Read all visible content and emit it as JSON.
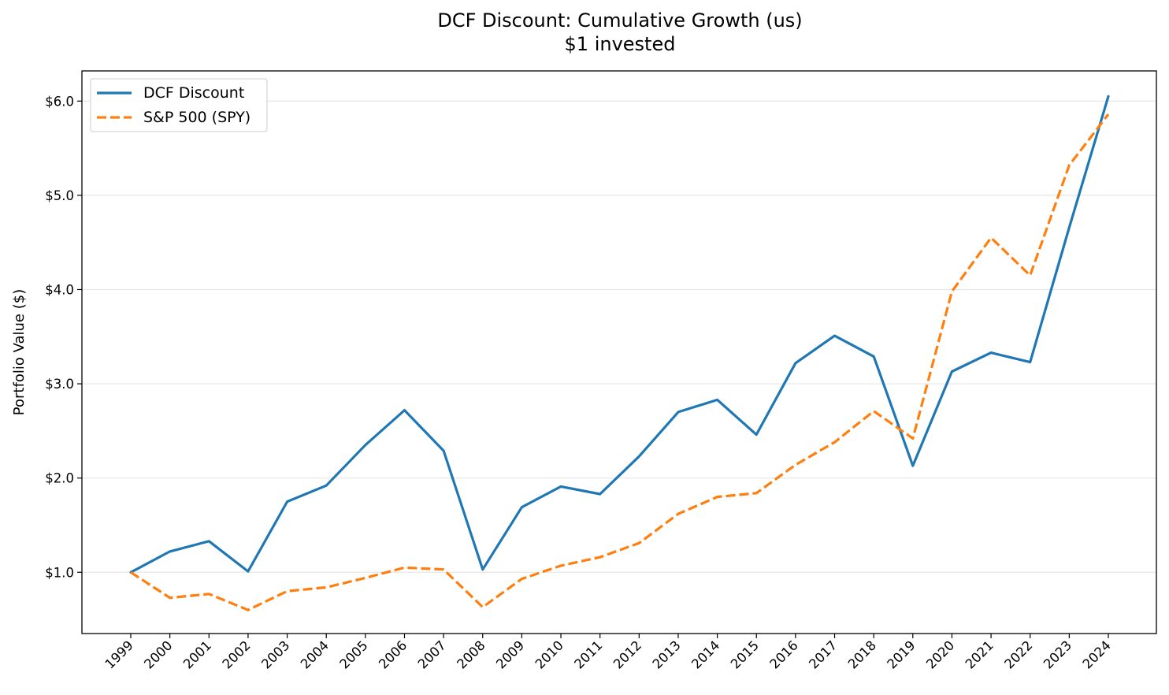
{
  "chart_data": {
    "type": "line",
    "title": "DCF Discount: Cumulative Growth (us)",
    "subtitle": "$1 invested",
    "xlabel": "",
    "ylabel": "Portfolio Value ($)",
    "categories": [
      "1999",
      "2000",
      "2001",
      "2002",
      "2003",
      "2004",
      "2005",
      "2006",
      "2007",
      "2008",
      "2009",
      "2010",
      "2011",
      "2012",
      "2013",
      "2014",
      "2015",
      "2016",
      "2017",
      "2018",
      "2019",
      "2020",
      "2021",
      "2022",
      "2023",
      "2024"
    ],
    "ylim": [
      0.35,
      6.32
    ],
    "yticks": [
      1.0,
      2.0,
      3.0,
      4.0,
      5.0,
      6.0
    ],
    "ytick_labels": [
      "$1.0",
      "$2.0",
      "$3.0",
      "$4.0",
      "$5.0",
      "$6.0"
    ],
    "grid": "horizontal",
    "legend_position": "upper-left",
    "series": [
      {
        "name": "DCF Discount",
        "color": "#1f77b4",
        "style": "solid",
        "values": [
          1.0,
          1.22,
          1.33,
          1.01,
          1.75,
          1.92,
          2.35,
          2.72,
          2.29,
          1.03,
          1.69,
          1.91,
          1.83,
          2.23,
          2.7,
          2.83,
          2.46,
          3.22,
          3.51,
          3.29,
          2.13,
          3.13,
          3.33,
          3.23,
          4.66,
          6.05
        ]
      },
      {
        "name": "S&P 500 (SPY)",
        "color": "#ff7f0e",
        "style": "dashed",
        "values": [
          1.0,
          0.73,
          0.77,
          0.6,
          0.8,
          0.84,
          0.94,
          1.05,
          1.03,
          0.63,
          0.93,
          1.07,
          1.16,
          1.31,
          1.62,
          1.8,
          1.84,
          2.14,
          2.38,
          2.71,
          2.42,
          3.98,
          4.55,
          4.15,
          5.32,
          5.86
        ]
      }
    ]
  }
}
